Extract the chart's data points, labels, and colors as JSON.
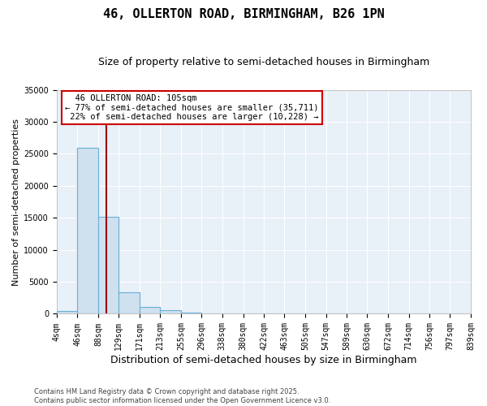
{
  "title": "46, OLLERTON ROAD, BIRMINGHAM, B26 1PN",
  "subtitle": "Size of property relative to semi-detached houses in Birmingham",
  "xlabel": "Distribution of semi-detached houses by size in Birmingham",
  "ylabel": "Number of semi-detached properties",
  "property_size": 105,
  "property_label": "46 OLLERTON ROAD: 105sqm",
  "pct_smaller": 77,
  "pct_larger": 22,
  "n_smaller": 35711,
  "n_larger": 10228,
  "bin_edges": [
    4,
    46,
    88,
    129,
    171,
    213,
    255,
    296,
    338,
    380,
    422,
    463,
    505,
    547,
    589,
    630,
    672,
    714,
    756,
    797,
    839
  ],
  "bin_counts": [
    500,
    26000,
    15200,
    3300,
    1100,
    600,
    150,
    80,
    50,
    30,
    20,
    15,
    10,
    8,
    5,
    4,
    3,
    2,
    1,
    1
  ],
  "bar_facecolor": "#cfe0ef",
  "bar_edgecolor": "#6aaed6",
  "line_color": "#9b0000",
  "annotation_box_color": "#cc0000",
  "background_color": "#e8f0f8",
  "grid_color": "#ffffff",
  "fig_background": "#ffffff",
  "ylim": [
    0,
    35000
  ],
  "yticks": [
    0,
    5000,
    10000,
    15000,
    20000,
    25000,
    30000,
    35000
  ],
  "copyright_text": "Contains HM Land Registry data © Crown copyright and database right 2025.\nContains public sector information licensed under the Open Government Licence v3.0.",
  "title_fontsize": 11,
  "subtitle_fontsize": 9,
  "tick_fontsize": 7,
  "ylabel_fontsize": 8,
  "xlabel_fontsize": 9
}
